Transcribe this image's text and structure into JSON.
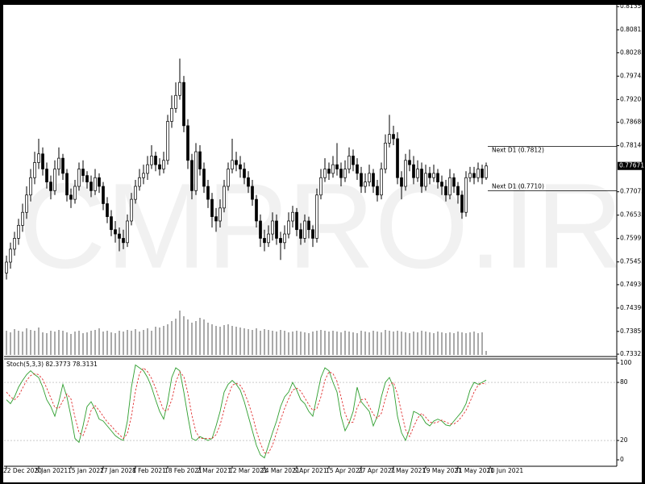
{
  "chart_data": {
    "type": "candlestick",
    "watermark": "CMPRO.IR",
    "up_color": "#ffffff",
    "down_color": "#000000",
    "volume_color": "#555555",
    "ylim": [
      0.7327,
      0.8141
    ],
    "xlim": [
      -0.6,
      151.4
    ],
    "yticks": [
      {
        "value": 0.8135,
        "label": "0.81350"
      },
      {
        "value": 0.80815,
        "label": "0.80815"
      },
      {
        "value": 0.80285,
        "label": "0.80285"
      },
      {
        "value": 0.79745,
        "label": "0.79745"
      },
      {
        "value": 0.79205,
        "label": "0.79205"
      },
      {
        "value": 0.7868,
        "label": "0.78680"
      },
      {
        "value": 0.7814,
        "label": "0.78140"
      },
      {
        "value": 0.77075,
        "label": "0.77075"
      },
      {
        "value": 0.76535,
        "label": "0.76535"
      },
      {
        "value": 0.75995,
        "label": "0.75995"
      },
      {
        "value": 0.75455,
        "label": "0.75455"
      },
      {
        "value": 0.7493,
        "label": "0.74930"
      },
      {
        "value": 0.7439,
        "label": "0.74390"
      },
      {
        "value": 0.7385,
        "label": "0.73850"
      },
      {
        "value": 0.73325,
        "label": "0.73325"
      }
    ],
    "xticks": [
      {
        "value": 0,
        "label": "22 Dec 2020"
      },
      {
        "value": 8,
        "label": "5 Jan 2021"
      },
      {
        "value": 16,
        "label": "15 Jan 2021"
      },
      {
        "value": 24,
        "label": "27 Jan 2021"
      },
      {
        "value": 32,
        "label": "8 Feb 2021"
      },
      {
        "value": 40,
        "label": "18 Feb 2021"
      },
      {
        "value": 48,
        "label": "2 Mar 2021"
      },
      {
        "value": 56,
        "label": "12 Mar 2021"
      },
      {
        "value": 64,
        "label": "24 Mar 2021"
      },
      {
        "value": 72,
        "label": "5 Apr 2021"
      },
      {
        "value": 80,
        "label": "15 Apr 2021"
      },
      {
        "value": 88,
        "label": "27 Apr 2021"
      },
      {
        "value": 96,
        "label": "7 May 2021"
      },
      {
        "value": 104,
        "label": "19 May 2021"
      },
      {
        "value": 112,
        "label": "31 May 2021"
      },
      {
        "value": 120,
        "label": "10 Jun 2021"
      }
    ],
    "current_price": {
      "value": 0.77671,
      "label": "0.77671"
    },
    "levels": [
      {
        "value": 0.7812,
        "label": "Next D1 (0.7812)"
      },
      {
        "value": 0.771,
        "label": "Next D1 (0.7710)"
      }
    ],
    "ohlc": [
      [
        0.752,
        0.756,
        0.7505,
        0.7545
      ],
      [
        0.7545,
        0.759,
        0.753,
        0.7575
      ],
      [
        0.7575,
        0.7615,
        0.756,
        0.76
      ],
      [
        0.76,
        0.7645,
        0.7585,
        0.763
      ],
      [
        0.763,
        0.768,
        0.7615,
        0.766
      ],
      [
        0.766,
        0.772,
        0.7645,
        0.77
      ],
      [
        0.77,
        0.776,
        0.7685,
        0.774
      ],
      [
        0.774,
        0.78,
        0.7725,
        0.7775
      ],
      [
        0.7775,
        0.783,
        0.776,
        0.7795
      ],
      [
        0.7795,
        0.781,
        0.7745,
        0.776
      ],
      [
        0.776,
        0.7775,
        0.7715,
        0.773
      ],
      [
        0.773,
        0.7745,
        0.769,
        0.771
      ],
      [
        0.771,
        0.778,
        0.77,
        0.776
      ],
      [
        0.776,
        0.781,
        0.7745,
        0.7785
      ],
      [
        0.7785,
        0.7795,
        0.7735,
        0.775
      ],
      [
        0.775,
        0.776,
        0.7685,
        0.77
      ],
      [
        0.77,
        0.7715,
        0.767,
        0.769
      ],
      [
        0.769,
        0.7735,
        0.768,
        0.772
      ],
      [
        0.772,
        0.7775,
        0.771,
        0.776
      ],
      [
        0.776,
        0.778,
        0.773,
        0.7745
      ],
      [
        0.7745,
        0.7755,
        0.7715,
        0.773
      ],
      [
        0.773,
        0.7745,
        0.7695,
        0.771
      ],
      [
        0.771,
        0.776,
        0.77,
        0.774
      ],
      [
        0.774,
        0.775,
        0.7705,
        0.772
      ],
      [
        0.772,
        0.773,
        0.7665,
        0.768
      ],
      [
        0.768,
        0.7695,
        0.7635,
        0.765
      ],
      [
        0.765,
        0.7665,
        0.7605,
        0.762
      ],
      [
        0.762,
        0.764,
        0.759,
        0.761
      ],
      [
        0.761,
        0.7625,
        0.757,
        0.76
      ],
      [
        0.76,
        0.762,
        0.7575,
        0.759
      ],
      [
        0.759,
        0.7655,
        0.758,
        0.764
      ],
      [
        0.764,
        0.7705,
        0.763,
        0.769
      ],
      [
        0.769,
        0.7735,
        0.768,
        0.772
      ],
      [
        0.772,
        0.776,
        0.771,
        0.774
      ],
      [
        0.774,
        0.777,
        0.7725,
        0.775
      ],
      [
        0.775,
        0.779,
        0.7735,
        0.777
      ],
      [
        0.777,
        0.7815,
        0.776,
        0.779
      ],
      [
        0.779,
        0.78,
        0.7755,
        0.777
      ],
      [
        0.777,
        0.7785,
        0.7745,
        0.776
      ],
      [
        0.776,
        0.78,
        0.775,
        0.778
      ],
      [
        0.778,
        0.7885,
        0.777,
        0.787
      ],
      [
        0.787,
        0.793,
        0.7855,
        0.79
      ],
      [
        0.79,
        0.796,
        0.789,
        0.793
      ],
      [
        0.793,
        0.8015,
        0.792,
        0.796
      ],
      [
        0.796,
        0.7975,
        0.7845,
        0.786
      ],
      [
        0.786,
        0.7875,
        0.776,
        0.778
      ],
      [
        0.778,
        0.7795,
        0.769,
        0.771
      ],
      [
        0.771,
        0.782,
        0.77,
        0.78
      ],
      [
        0.78,
        0.7815,
        0.7745,
        0.776
      ],
      [
        0.776,
        0.7775,
        0.7705,
        0.772
      ],
      [
        0.772,
        0.7735,
        0.767,
        0.769
      ],
      [
        0.769,
        0.7705,
        0.7625,
        0.765
      ],
      [
        0.765,
        0.767,
        0.7615,
        0.764
      ],
      [
        0.764,
        0.769,
        0.7625,
        0.767
      ],
      [
        0.767,
        0.7735,
        0.766,
        0.772
      ],
      [
        0.772,
        0.7775,
        0.771,
        0.776
      ],
      [
        0.776,
        0.783,
        0.775,
        0.778
      ],
      [
        0.778,
        0.78,
        0.7755,
        0.777
      ],
      [
        0.777,
        0.779,
        0.774,
        0.776
      ],
      [
        0.776,
        0.7775,
        0.7725,
        0.774
      ],
      [
        0.774,
        0.7755,
        0.7705,
        0.772
      ],
      [
        0.772,
        0.7735,
        0.7675,
        0.769
      ],
      [
        0.769,
        0.77,
        0.7625,
        0.764
      ],
      [
        0.764,
        0.7655,
        0.758,
        0.76
      ],
      [
        0.76,
        0.762,
        0.757,
        0.759
      ],
      [
        0.759,
        0.763,
        0.758,
        0.761
      ],
      [
        0.761,
        0.766,
        0.7595,
        0.764
      ],
      [
        0.764,
        0.7655,
        0.7585,
        0.76
      ],
      [
        0.76,
        0.7615,
        0.755,
        0.759
      ],
      [
        0.759,
        0.763,
        0.7575,
        0.761
      ],
      [
        0.761,
        0.766,
        0.76,
        0.764
      ],
      [
        0.764,
        0.7675,
        0.7625,
        0.766
      ],
      [
        0.766,
        0.767,
        0.7605,
        0.762
      ],
      [
        0.762,
        0.7635,
        0.7585,
        0.76
      ],
      [
        0.76,
        0.7655,
        0.759,
        0.764
      ],
      [
        0.764,
        0.765,
        0.76,
        0.762
      ],
      [
        0.762,
        0.763,
        0.758,
        0.76
      ],
      [
        0.76,
        0.7715,
        0.759,
        0.77
      ],
      [
        0.77,
        0.776,
        0.769,
        0.774
      ],
      [
        0.774,
        0.7785,
        0.773,
        0.776
      ],
      [
        0.776,
        0.7775,
        0.7735,
        0.775
      ],
      [
        0.775,
        0.779,
        0.774,
        0.777
      ],
      [
        0.777,
        0.782,
        0.7745,
        0.776
      ],
      [
        0.776,
        0.7775,
        0.772,
        0.774
      ],
      [
        0.774,
        0.778,
        0.773,
        0.776
      ],
      [
        0.776,
        0.781,
        0.775,
        0.779
      ],
      [
        0.779,
        0.7805,
        0.7755,
        0.777
      ],
      [
        0.777,
        0.7785,
        0.7735,
        0.775
      ],
      [
        0.775,
        0.7765,
        0.7705,
        0.772
      ],
      [
        0.772,
        0.775,
        0.7705,
        0.773
      ],
      [
        0.773,
        0.777,
        0.772,
        0.775
      ],
      [
        0.775,
        0.776,
        0.7705,
        0.772
      ],
      [
        0.772,
        0.7735,
        0.7685,
        0.77
      ],
      [
        0.77,
        0.7775,
        0.769,
        0.776
      ],
      [
        0.776,
        0.784,
        0.775,
        0.782
      ],
      [
        0.782,
        0.7885,
        0.781,
        0.784
      ],
      [
        0.784,
        0.786,
        0.7815,
        0.783
      ],
      [
        0.783,
        0.7845,
        0.7725,
        0.774
      ],
      [
        0.774,
        0.7755,
        0.769,
        0.772
      ],
      [
        0.772,
        0.7795,
        0.771,
        0.778
      ],
      [
        0.778,
        0.7805,
        0.7755,
        0.777
      ],
      [
        0.777,
        0.779,
        0.7725,
        0.774
      ],
      [
        0.774,
        0.778,
        0.773,
        0.776
      ],
      [
        0.776,
        0.7775,
        0.7705,
        0.772
      ],
      [
        0.772,
        0.777,
        0.771,
        0.775
      ],
      [
        0.775,
        0.7765,
        0.7725,
        0.774
      ],
      [
        0.774,
        0.777,
        0.773,
        0.775
      ],
      [
        0.775,
        0.776,
        0.7715,
        0.773
      ],
      [
        0.773,
        0.7745,
        0.77,
        0.772
      ],
      [
        0.772,
        0.7735,
        0.7685,
        0.77
      ],
      [
        0.77,
        0.776,
        0.769,
        0.774
      ],
      [
        0.774,
        0.775,
        0.7705,
        0.772
      ],
      [
        0.772,
        0.773,
        0.768,
        0.77
      ],
      [
        0.77,
        0.771,
        0.7645,
        0.766
      ],
      [
        0.766,
        0.7755,
        0.765,
        0.774
      ],
      [
        0.774,
        0.7765,
        0.773,
        0.775
      ],
      [
        0.775,
        0.7765,
        0.7725,
        0.774
      ],
      [
        0.774,
        0.7775,
        0.773,
        0.776
      ],
      [
        0.776,
        0.777,
        0.7725,
        0.774
      ],
      [
        0.774,
        0.7775,
        0.7735,
        0.77671
      ]
    ],
    "volume": [
      30,
      28,
      32,
      30,
      29,
      33,
      31,
      30,
      34,
      28,
      27,
      30,
      29,
      31,
      30,
      28,
      26,
      29,
      30,
      27,
      28,
      30,
      31,
      33,
      29,
      30,
      28,
      27,
      30,
      29,
      31,
      30,
      32,
      29,
      31,
      33,
      30,
      35,
      34,
      36,
      38,
      42,
      45,
      55,
      48,
      44,
      40,
      42,
      46,
      44,
      40,
      38,
      36,
      35,
      37,
      38,
      36,
      35,
      34,
      33,
      32,
      31,
      33,
      30,
      32,
      31,
      30,
      29,
      31,
      30,
      28,
      29,
      30,
      29,
      28,
      27,
      29,
      30,
      31,
      30,
      29,
      30,
      29,
      28,
      30,
      29,
      28,
      27,
      30,
      29,
      28,
      30,
      29,
      28,
      31,
      30,
      29,
      30,
      29,
      28,
      27,
      29,
      28,
      30,
      29,
      28,
      27,
      29,
      28,
      27,
      28,
      27,
      29,
      28,
      27,
      28,
      29,
      27,
      28,
      5
    ],
    "indicator": {
      "label": "Stoch(5,3,3) 82.3773 78.3131",
      "ylim": [
        -5.8,
        104.2
      ],
      "yticks": [
        0,
        20,
        80,
        100
      ],
      "levels": [
        20,
        80
      ],
      "series": [
        {
          "color": "#2e9e2e",
          "values": [
            62,
            58,
            65,
            75,
            82,
            88,
            92,
            88,
            85,
            75,
            62,
            55,
            45,
            60,
            78,
            65,
            45,
            22,
            18,
            35,
            55,
            60,
            52,
            42,
            40,
            35,
            30,
            25,
            22,
            20,
            40,
            75,
            98,
            95,
            92,
            85,
            75,
            62,
            50,
            42,
            60,
            85,
            95,
            92,
            70,
            45,
            22,
            20,
            24,
            22,
            20,
            22,
            35,
            50,
            70,
            78,
            82,
            78,
            72,
            60,
            45,
            30,
            15,
            5,
            2,
            15,
            28,
            40,
            55,
            65,
            70,
            80,
            72,
            62,
            58,
            50,
            45,
            65,
            85,
            95,
            92,
            80,
            70,
            45,
            30,
            38,
            50,
            75,
            60,
            55,
            50,
            35,
            45,
            65,
            80,
            85,
            75,
            45,
            28,
            20,
            32,
            50,
            48,
            45,
            38,
            35,
            40,
            42,
            40,
            36,
            35,
            40,
            45,
            50,
            58,
            72,
            80,
            78,
            80,
            82.3773
          ]
        },
        {
          "color": "#e03030",
          "values": [
            70,
            65,
            62,
            66,
            74,
            82,
            87,
            89,
            88,
            83,
            74,
            64,
            54,
            53,
            61,
            68,
            63,
            44,
            28,
            25,
            36,
            51,
            56,
            51,
            45,
            39,
            35,
            30,
            26,
            22,
            27,
            45,
            71,
            89,
            95,
            91,
            84,
            74,
            62,
            51,
            51,
            62,
            80,
            91,
            86,
            69,
            46,
            29,
            22,
            22,
            22,
            22,
            26,
            36,
            52,
            66,
            77,
            79,
            77,
            70,
            59,
            46,
            30,
            17,
            7,
            7,
            15,
            28,
            41,
            53,
            63,
            72,
            74,
            71,
            64,
            57,
            51,
            53,
            65,
            82,
            91,
            89,
            81,
            65,
            48,
            38,
            39,
            54,
            62,
            63,
            55,
            47,
            43,
            48,
            63,
            77,
            80,
            68,
            49,
            31,
            24,
            34,
            43,
            48,
            44,
            39,
            38,
            39,
            41,
            39,
            37,
            37,
            40,
            45,
            51,
            60,
            70,
            77,
            79,
            78.3131
          ]
        }
      ]
    }
  }
}
